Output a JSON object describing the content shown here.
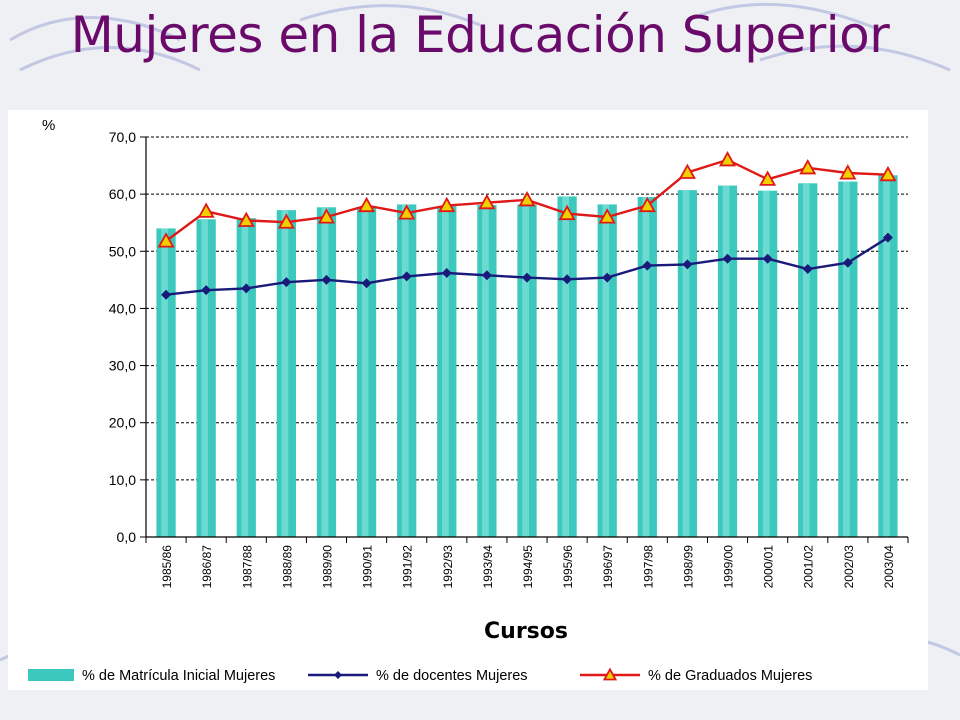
{
  "slide": {
    "title": "Mujeres en la Educación Superior"
  },
  "chart_data": {
    "type": "bar+line",
    "title": "",
    "xlabel": "Cursos",
    "ylabel": "%",
    "ylim": [
      0,
      70
    ],
    "yticks": [
      "0,0",
      "10,0",
      "20,0",
      "30,0",
      "40,0",
      "50,0",
      "60,0",
      "70,0"
    ],
    "grid": "horizontal dashed",
    "legend": "bottom",
    "categories": [
      "1985/86",
      "1986/87",
      "1987/88",
      "1988/89",
      "1989/90",
      "1990/91",
      "1991/92",
      "1992/93",
      "1993/94",
      "1994/95",
      "1995/96",
      "1996/97",
      "1997/98",
      "1998/99",
      "1999/00",
      "2000/01",
      "2001/02",
      "2002/03",
      "2003/04"
    ],
    "series": [
      {
        "name": "% de Matrícula Inicial Mujeres",
        "kind": "bar",
        "color": "#3cc8bc",
        "values": [
          54.0,
          55.6,
          55.8,
          57.2,
          57.7,
          57.6,
          58.2,
          57.9,
          58.1,
          58.2,
          59.6,
          58.2,
          59.5,
          60.7,
          61.5,
          60.6,
          61.9,
          62.2,
          63.3
        ]
      },
      {
        "name": "% de docentes Mujeres",
        "kind": "line",
        "color": "#1a1a7a",
        "marker": "diamond",
        "values": [
          42.4,
          43.2,
          43.5,
          44.6,
          45.0,
          44.4,
          45.6,
          46.2,
          45.8,
          45.4,
          45.1,
          45.4,
          47.5,
          47.7,
          48.7,
          48.7,
          46.9,
          48.0,
          52.4
        ]
      },
      {
        "name": "% de Graduados Mujeres",
        "kind": "line",
        "color": "#e01818",
        "marker": "triangle",
        "marker_color": "#f0d000",
        "values": [
          51.8,
          57.0,
          55.4,
          55.1,
          56.0,
          58.0,
          56.7,
          58.0,
          58.5,
          59.0,
          56.6,
          56.0,
          58.0,
          63.8,
          66.0,
          62.6,
          64.6,
          63.7,
          63.4
        ]
      }
    ]
  }
}
